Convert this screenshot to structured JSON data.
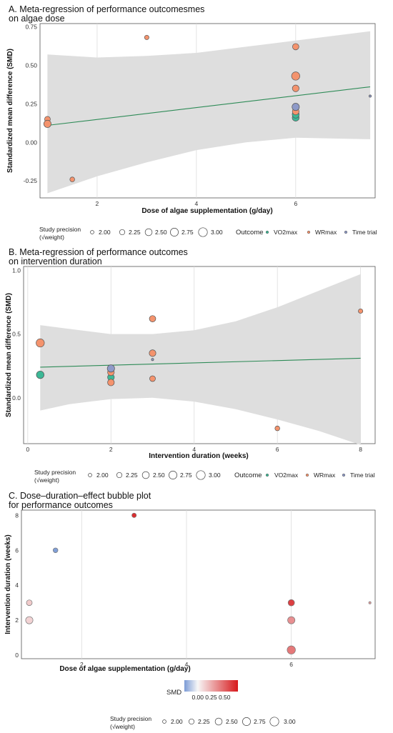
{
  "chart_data": [
    {
      "type": "scatter",
      "title": "A.  Meta-regression of performance outcomesmes",
      "title_line2": "on algae dose",
      "xlabel": "Dose of algae supplementation (g/day)",
      "ylabel": "Standardized mean difference (SMD)",
      "xlim": [
        0.85,
        7.6
      ],
      "ylim": [
        -0.36,
        0.77
      ],
      "xticks": [
        2,
        4,
        6
      ],
      "xtick_labels": [
        "2",
        "4",
        "6"
      ],
      "yticks": [
        -0.25,
        0,
        0.25,
        0.5,
        0.75
      ],
      "ytick_labels": [
        "-0.25",
        "0.00",
        "0.25",
        "0.50",
        "0.75"
      ],
      "regression_line": {
        "x": [
          1,
          7.5
        ],
        "y": [
          0.11,
          0.36
        ]
      },
      "confidence_band": {
        "x": [
          1,
          2,
          3,
          4,
          5,
          6,
          7.5
        ],
        "lower": [
          -0.33,
          -0.22,
          -0.13,
          -0.05,
          0.0,
          0.03,
          0.02
        ],
        "upper": [
          0.57,
          0.55,
          0.56,
          0.58,
          0.62,
          0.66,
          0.72
        ]
      },
      "series": [
        {
          "name": "VO2max",
          "color": "#3cb896",
          "points": [
            {
              "x": 6,
              "y": 0.16,
              "weight": 2.5
            },
            {
              "x": 6,
              "y": 0.18,
              "weight": 2.5
            }
          ]
        },
        {
          "name": "WRmax",
          "color": "#f4936d",
          "points": [
            {
              "x": 1,
              "y": 0.15,
              "weight": 2.3
            },
            {
              "x": 1,
              "y": 0.12,
              "weight": 2.55
            },
            {
              "x": 1.5,
              "y": -0.24,
              "weight": 2.15
            },
            {
              "x": 3,
              "y": 0.68,
              "weight": 2.1
            },
            {
              "x": 6,
              "y": 0.62,
              "weight": 2.4
            },
            {
              "x": 6,
              "y": 0.43,
              "weight": 2.7
            },
            {
              "x": 6,
              "y": 0.35,
              "weight": 2.45
            },
            {
              "x": 6,
              "y": 0.2,
              "weight": 2.45
            }
          ]
        },
        {
          "name": "Time trial",
          "color": "#8e9ac8",
          "points": [
            {
              "x": 6,
              "y": 0.23,
              "weight": 2.55
            },
            {
              "x": 7.5,
              "y": 0.3,
              "weight": 1.75
            }
          ]
        }
      ],
      "legend": {
        "precision_title_1": "Study precision",
        "precision_title_2": "(√weight)",
        "sizes": [
          "2.00",
          "2.25",
          "2.50",
          "2.75",
          "3.00"
        ],
        "outcome_title": "Outcome",
        "outcomes": [
          "VO2max",
          "WRmax",
          "Time trial"
        ]
      }
    },
    {
      "type": "scatter",
      "title": "B. Meta-regression of performance outcomes",
      "title_line2": "on intervention duration",
      "xlabel": "Intervention duration (weeks)",
      "ylabel": "Standardized mean difference (SMD)",
      "xlim": [
        -0.1,
        8.35
      ],
      "ylim": [
        -0.36,
        1.03
      ],
      "xticks": [
        0,
        2,
        4,
        6,
        8
      ],
      "xtick_labels": [
        "0",
        "2",
        "4",
        "6",
        "8"
      ],
      "yticks": [
        0,
        0.5,
        1
      ],
      "ytick_labels": [
        "0.0",
        "0.5",
        "1.0"
      ],
      "regression_line": {
        "x": [
          0.3,
          8
        ],
        "y": [
          0.24,
          0.31
        ]
      },
      "confidence_band": {
        "x": [
          0.3,
          1,
          2,
          3,
          4,
          5,
          6,
          7,
          8
        ],
        "lower": [
          -0.1,
          -0.05,
          -0.01,
          0.0,
          -0.03,
          -0.09,
          -0.17,
          -0.26,
          -0.37
        ],
        "upper": [
          0.57,
          0.54,
          0.5,
          0.5,
          0.53,
          0.6,
          0.71,
          0.84,
          0.97
        ]
      },
      "series": [
        {
          "name": "VO2max",
          "color": "#3cb896",
          "points": [
            {
              "x": 0.3,
              "y": 0.18,
              "weight": 2.6
            },
            {
              "x": 2,
              "y": 0.16,
              "weight": 2.45
            }
          ]
        },
        {
          "name": "WRmax",
          "color": "#f4936d",
          "points": [
            {
              "x": 0.3,
              "y": 0.43,
              "weight": 2.7
            },
            {
              "x": 2,
              "y": 0.2,
              "weight": 2.45
            },
            {
              "x": 2,
              "y": 0.12,
              "weight": 2.45
            },
            {
              "x": 3,
              "y": 0.62,
              "weight": 2.4
            },
            {
              "x": 3,
              "y": 0.35,
              "weight": 2.45
            },
            {
              "x": 3,
              "y": 0.15,
              "weight": 2.3
            },
            {
              "x": 6,
              "y": -0.24,
              "weight": 2.15
            },
            {
              "x": 8,
              "y": 0.68,
              "weight": 2.1
            }
          ]
        },
        {
          "name": "Time trial",
          "color": "#8e9ac8",
          "points": [
            {
              "x": 2,
              "y": 0.23,
              "weight": 2.55
            },
            {
              "x": 3,
              "y": 0.3,
              "weight": 1.75
            }
          ]
        }
      ],
      "legend": {
        "precision_title_1": "Study precision",
        "precision_title_2": "(√weight)",
        "sizes": [
          "2.00",
          "2.25",
          "2.50",
          "2.75",
          "3.00"
        ],
        "outcome_title": "Outcome",
        "outcomes": [
          "VO2max",
          "WRmax",
          "Time trial"
        ]
      }
    },
    {
      "type": "scatter",
      "title": "C. Dose–duration–effect bubble plot",
      "title_line2": "for performance outcomes",
      "xlabel": "Dose of algae supplementation (g/day)",
      "ylabel": "Intervention duration (weeks)",
      "xlim": [
        0.85,
        7.6
      ],
      "ylim": [
        -0.2,
        8.3
      ],
      "xticks": [
        2,
        4,
        6
      ],
      "xtick_labels": [
        "2",
        "4",
        "6"
      ],
      "yticks": [
        0,
        2,
        4,
        6,
        8
      ],
      "ytick_labels": [
        "0",
        "2",
        "4",
        "6",
        "8"
      ],
      "color_scale": {
        "title": "SMD",
        "low": "#7b9bd6",
        "mid": "#f7f7f7",
        "high": "#d7191c",
        "domain": [
          -0.25,
          0,
          0.75
        ],
        "tick_values": [
          0,
          0.25,
          0.5
        ],
        "tick_labels": [
          "0.00",
          "0.25",
          "0.50"
        ]
      },
      "points": [
        {
          "x": 1,
          "y": 3,
          "smd": 0.15,
          "weight": 2.3
        },
        {
          "x": 1,
          "y": 2,
          "smd": 0.12,
          "weight": 2.55
        },
        {
          "x": 1.5,
          "y": 6,
          "smd": -0.24,
          "weight": 2.15
        },
        {
          "x": 3,
          "y": 8,
          "smd": 0.68,
          "weight": 2.1
        },
        {
          "x": 6,
          "y": 3,
          "smd": 0.62,
          "weight": 2.4
        },
        {
          "x": 6,
          "y": 2,
          "smd": 0.35,
          "weight": 2.55
        },
        {
          "x": 6,
          "y": 0.3,
          "smd": 0.43,
          "weight": 2.7
        },
        {
          "x": 7.5,
          "y": 3,
          "smd": 0.3,
          "weight": 1.75
        }
      ],
      "legend": {
        "precision_title_1": "Study precision",
        "precision_title_2": "(√weight)",
        "sizes": [
          "2.00",
          "2.25",
          "2.50",
          "2.75",
          "3.00"
        ]
      }
    }
  ]
}
